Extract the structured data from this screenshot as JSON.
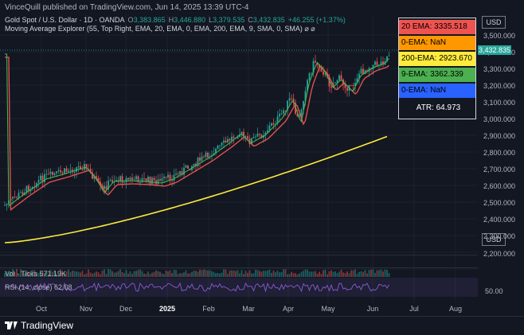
{
  "topbar": {
    "text": "VinceQuill published on TradingView.com, Jun 14, 2025 13:39 UTC-4"
  },
  "legend": {
    "line1": {
      "symbol": "Gold Spot / U.S. Dollar · 1D · OANDA",
      "o_label": "O",
      "o": "3,383.865",
      "h_label": "H",
      "h": "3,446.880",
      "l_label": "L",
      "l": "3,379.535",
      "c_label": "C",
      "c": "3,432.835",
      "chg": "+46.255 (+1.37%)"
    },
    "line2": "Moving Average Explorer (55, Top Right, EMA, 20, EMA, 0, EMA, 200, EMA, 9, SMA, 0, SMA)  ⌀ ⌀"
  },
  "stats": [
    {
      "text": "20 EMA: 3335.518",
      "color": "#ef5350"
    },
    {
      "text": "0-EMA: NaN",
      "color": "#ff9800"
    },
    {
      "text": "200-EMA: 2923.670",
      "color": "#ffeb3b"
    },
    {
      "text": "9-EMA: 3362.339",
      "color": "#4caf50"
    },
    {
      "text": "0-EMA: NaN",
      "color": "#2962ff"
    },
    {
      "text": "ATR: 64.973",
      "color": "#131722"
    }
  ],
  "axis": {
    "currency": "USD",
    "price_label": "3,432.835",
    "ticks": [
      "3,500.000",
      "3,400.000",
      "3,300.000",
      "3,200.000",
      "3,100.000",
      "3,000.000",
      "2,900.000",
      "2,800.000",
      "2,700.000",
      "2,600.000",
      "2,500.000",
      "2,400.000",
      "2,300.000",
      "2,200.000"
    ],
    "rsi_tick": "50.00"
  },
  "xaxis": [
    "Oct",
    "Nov",
    "Dec",
    "2025",
    "Feb",
    "Mar",
    "Apr",
    "May",
    "Jun",
    "Jul",
    "Aug"
  ],
  "panes": {
    "vol": "Vol · Ticks  571.19K",
    "rsi": "RSI (14, close)  62.08"
  },
  "footer": {
    "brand": "TradingView"
  },
  "colors": {
    "up": "#26a69a",
    "down": "#ef5350",
    "ema20": "#ef5350",
    "ema200": "#ffeb3b",
    "ema9": "#4caf50",
    "rsi": "#7e57c2"
  }
}
